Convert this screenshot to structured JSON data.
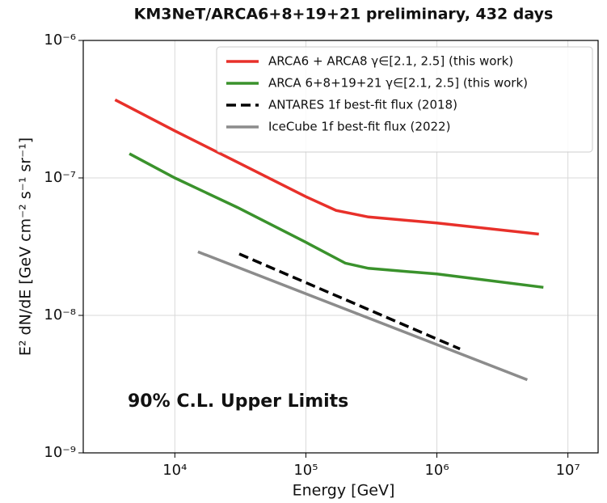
{
  "chart_data": {
    "type": "line",
    "title": "KM3NeT/ARCA6+8+19+21 preliminary, 432 days",
    "xlabel": "Energy [GeV]",
    "ylabel": "E² dN/dE [GeV cm⁻² s⁻¹ sr⁻¹]",
    "annotation": "90% C.L. Upper Limits",
    "xscale": "log",
    "yscale": "log",
    "grid": true,
    "legend": "upper right",
    "xlim": [
      2000,
      17000000
    ],
    "ylim": [
      1e-09,
      1e-06
    ],
    "xticks": [
      {
        "value": 10000,
        "label": "10⁴"
      },
      {
        "value": 100000,
        "label": "10⁵"
      },
      {
        "value": 1000000,
        "label": "10⁶"
      },
      {
        "value": 10000000,
        "label": "10⁷"
      }
    ],
    "yticks": [
      {
        "value": 1e-09,
        "label": "10⁻⁹"
      },
      {
        "value": 1e-08,
        "label": "10⁻⁸"
      },
      {
        "value": 1e-07,
        "label": "10⁻⁷"
      },
      {
        "value": 1e-06,
        "label": "10⁻⁶"
      }
    ],
    "series": [
      {
        "name": "ARCA6 + ARCA8 γ∈[2.1, 2.5] (this work)",
        "color": "#e8302a",
        "linestyle": "solid",
        "x": [
          3500,
          10000,
          30000,
          100000,
          170000,
          300000,
          1000000,
          6000000
        ],
        "values": [
          3.7e-07,
          2.2e-07,
          1.3e-07,
          7.3e-08,
          5.8e-08,
          5.2e-08,
          4.7e-08,
          3.9e-08
        ]
      },
      {
        "name": "ARCA 6+8+19+21 γ∈[2.1, 2.5] (this work)",
        "color": "#3a922c",
        "linestyle": "solid",
        "x": [
          4500,
          10000,
          30000,
          100000,
          200000,
          300000,
          1000000,
          6500000
        ],
        "values": [
          1.5e-07,
          1e-07,
          6.1e-08,
          3.4e-08,
          2.4e-08,
          2.2e-08,
          2e-08,
          1.6e-08
        ]
      },
      {
        "name": "ANTARES 1f best-fit flux (2018)",
        "color": "#000000",
        "linestyle": "dashed",
        "x": [
          31000,
          1500000
        ],
        "values": [
          2.8e-08,
          5.7e-09
        ]
      },
      {
        "name": "IceCube 1f best-fit flux (2022)",
        "color": "#8c8c8c",
        "linestyle": "solid",
        "x": [
          15000,
          4900000
        ],
        "values": [
          2.9e-08,
          3.4e-09
        ]
      }
    ]
  }
}
